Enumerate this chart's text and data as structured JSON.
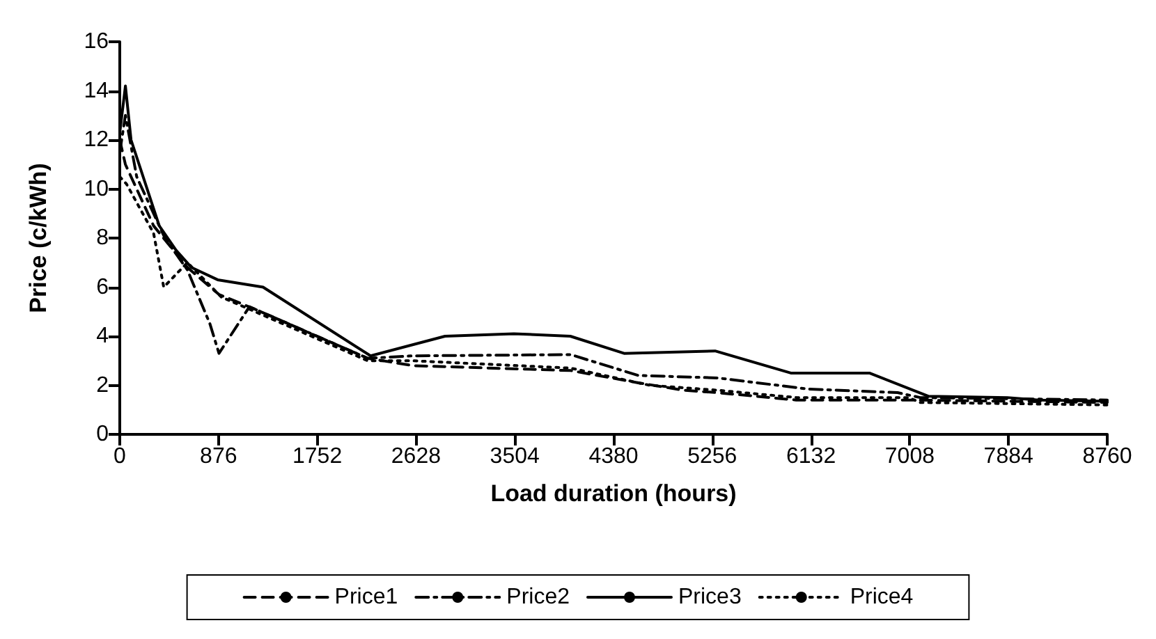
{
  "chart_data": {
    "type": "line",
    "xlabel": "Load duration (hours)",
    "ylabel": "Price (c/kWh)",
    "xlim": [
      0,
      8760
    ],
    "xticks": [
      0,
      876,
      1752,
      2628,
      3504,
      4380,
      5256,
      6132,
      7008,
      7884,
      8760
    ],
    "ylim": [
      0,
      16
    ],
    "yticks": [
      0,
      2,
      4,
      6,
      8,
      10,
      12,
      14,
      16
    ],
    "grid": false,
    "legend": "bottom",
    "marker": "none",
    "series": [
      {
        "name": "Price1",
        "color": "#000000",
        "line_style": "dashed",
        "x": [
          0,
          50,
          300,
          600,
          880,
          1200,
          2200,
          2600,
          4000,
          4600,
          5000,
          5300,
          6000,
          7000,
          8760
        ],
        "values": [
          12,
          11,
          8.5,
          6.8,
          5.7,
          5.1,
          3.1,
          2.8,
          2.6,
          2.1,
          1.8,
          1.7,
          1.4,
          1.4,
          1.3
        ]
      },
      {
        "name": "Price2",
        "color": "#000000",
        "line_style": "dashdot",
        "x": [
          0,
          50,
          150,
          400,
          600,
          800,
          880,
          1150,
          2200,
          2600,
          4000,
          4600,
          5300,
          6100,
          6900,
          7100,
          8760
        ],
        "values": [
          11.5,
          13,
          10.5,
          8,
          6.7,
          4.5,
          3.3,
          5.2,
          3.1,
          3.2,
          3.25,
          2.4,
          2.3,
          1.85,
          1.7,
          1.5,
          1.4
        ]
      },
      {
        "name": "Price3",
        "color": "#000000",
        "line_style": "solid",
        "x": [
          0,
          50,
          100,
          350,
          500,
          636,
          868,
          1271,
          2225,
          2885,
          3496,
          3997,
          4474,
          5281,
          5953,
          6650,
          7176,
          7873,
          8154,
          8760
        ],
        "values": [
          12.3,
          14.2,
          12,
          8.5,
          7.5,
          6.8,
          6.3,
          6,
          3.2,
          4,
          4.1,
          4,
          3.3,
          3.4,
          2.5,
          2.5,
          1.55,
          1.5,
          1.4,
          1.35
        ]
      },
      {
        "name": "Price4",
        "color": "#000000",
        "line_style": "dotted",
        "x": [
          0,
          60,
          300,
          390,
          600,
          900,
          1200,
          2200,
          2600,
          4000,
          4700,
          5300,
          6000,
          7000,
          7100,
          8760
        ],
        "values": [
          10.5,
          10.2,
          8.2,
          6,
          7,
          5.6,
          5,
          3,
          3,
          2.7,
          2,
          1.8,
          1.5,
          1.5,
          1.3,
          1.2
        ]
      }
    ]
  }
}
